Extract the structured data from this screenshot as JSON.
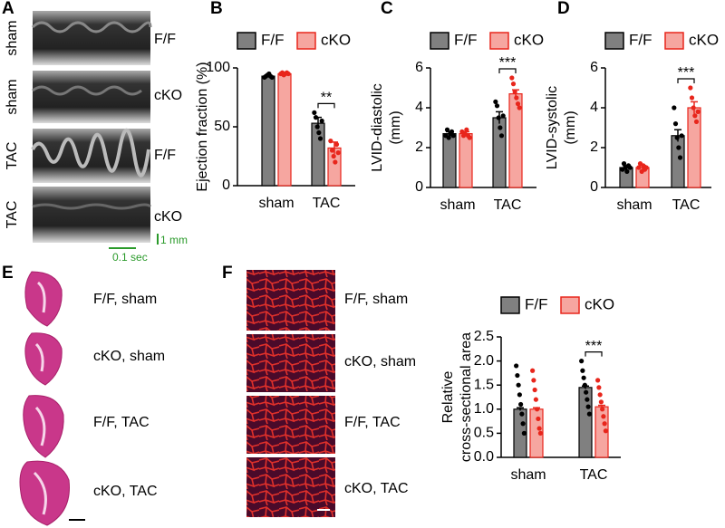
{
  "panel_labels": [
    "A",
    "B",
    "C",
    "D",
    "E",
    "F"
  ],
  "echo": {
    "row_labels": [
      "sham",
      "sham",
      "TAC",
      "TAC"
    ],
    "genotype_labels": [
      "F/F",
      "cKO",
      "F/F",
      "cKO"
    ],
    "scale_y": "1 mm",
    "scale_x": "0.1 sec"
  },
  "histology": {
    "labels": [
      "F/F, sham",
      "cKO, sham",
      "F/F, TAC",
      "cKO, TAC"
    ]
  },
  "staining": {
    "labels": [
      "F/F, sham",
      "cKO, sham",
      "F/F, TAC",
      "cKO, TAC"
    ]
  },
  "chart_data": [
    {
      "type": "bar",
      "ylabel": [
        "Ejection fraction (%)"
      ],
      "categories": [
        "sham",
        "TAC"
      ],
      "ylim": [
        0,
        100
      ],
      "yticks": [
        0,
        50,
        100
      ],
      "annotation": "**",
      "series": [
        {
          "name": "F/F",
          "color": "#808080",
          "edgecolor": "#000000",
          "point_color": "#000000",
          "legend_text_color": "#000000",
          "values": [
            93,
            53
          ],
          "errors": [
            1,
            5
          ],
          "points": [
            [
              92,
              93,
              94,
              95,
              93,
              92
            ],
            [
              62,
              58,
              50,
              45,
              40,
              55
            ]
          ]
        },
        {
          "name": "cKO",
          "color": "#f6a6a0",
          "edgecolor": "#e8261c",
          "point_color": "#e8261c",
          "legend_text_color": "#e8261c",
          "values": [
            95,
            32
          ],
          "errors": [
            1,
            5
          ],
          "points": [
            [
              95,
              96,
              94,
              95,
              96,
              95
            ],
            [
              38,
              30,
              25,
              20,
              35,
              28
            ]
          ]
        }
      ]
    },
    {
      "type": "bar",
      "ylabel": [
        "LVID-diastolic",
        "(mm)"
      ],
      "categories": [
        "sham",
        "TAC"
      ],
      "ylim": [
        0,
        6
      ],
      "yticks": [
        0,
        2,
        4,
        6
      ],
      "annotation": "***",
      "series": [
        {
          "name": "F/F",
          "color": "#808080",
          "edgecolor": "#000000",
          "point_color": "#000000",
          "legend_text_color": "#000000",
          "values": [
            2.7,
            3.5
          ],
          "errors": [
            0.1,
            0.3
          ],
          "points": [
            [
              2.6,
              2.9,
              2.5,
              2.7,
              2.8,
              2.6
            ],
            [
              4.3,
              4.1,
              3.5,
              3.0,
              2.6,
              3.6
            ]
          ]
        },
        {
          "name": "cKO",
          "color": "#f6a6a0",
          "edgecolor": "#e8261c",
          "point_color": "#e8261c",
          "legend_text_color": "#e8261c",
          "values": [
            2.7,
            4.7
          ],
          "errors": [
            0.1,
            0.2
          ],
          "points": [
            [
              2.8,
              2.6,
              2.7,
              2.9,
              2.6,
              2.5
            ],
            [
              5.5,
              5.2,
              4.8,
              4.5,
              4.2,
              4.0
            ]
          ]
        }
      ]
    },
    {
      "type": "bar",
      "ylabel": [
        "LVID-systolic",
        "(mm)"
      ],
      "categories": [
        "sham",
        "TAC"
      ],
      "ylim": [
        0,
        6
      ],
      "yticks": [
        0,
        2,
        4,
        6
      ],
      "annotation": "***",
      "series": [
        {
          "name": "F/F",
          "color": "#808080",
          "edgecolor": "#000000",
          "point_color": "#000000",
          "legend_text_color": "#000000",
          "values": [
            1.0,
            2.6
          ],
          "errors": [
            0.1,
            0.3
          ],
          "points": [
            [
              0.9,
              1.2,
              1.0,
              0.8,
              1.1,
              1.0
            ],
            [
              4.0,
              3.2,
              2.5,
              2.0,
              1.5,
              2.6
            ]
          ]
        },
        {
          "name": "cKO",
          "color": "#f6a6a0",
          "edgecolor": "#e8261c",
          "point_color": "#e8261c",
          "legend_text_color": "#e8261c",
          "values": [
            1.0,
            4.0
          ],
          "errors": [
            0.1,
            0.3
          ],
          "points": [
            [
              1.0,
              1.2,
              0.8,
              1.1,
              0.9,
              1.0
            ],
            [
              5.0,
              4.5,
              4.0,
              3.6,
              3.3,
              3.8
            ]
          ]
        }
      ]
    },
    {
      "type": "bar",
      "ylabel": [
        "Relative",
        "cross-sectional area"
      ],
      "categories": [
        "sham",
        "TAC"
      ],
      "ylim": [
        0,
        2.5
      ],
      "yticks": [
        {
          "value": 0,
          "label": "0.0"
        },
        0.5,
        {
          "value": 1,
          "label": "1.0"
        },
        1.5,
        {
          "value": 2,
          "label": "2.0"
        },
        2.5
      ],
      "annotation": "***",
      "series": [
        {
          "name": "F/F",
          "color": "#808080",
          "edgecolor": "#000000",
          "point_color": "#000000",
          "legend_text_color": "#000000",
          "values": [
            1.0,
            1.45
          ],
          "errors": [
            0.03,
            0.03
          ],
          "points": [
            [
              1.9,
              1.7,
              1.5,
              1.3,
              1.1,
              0.9,
              0.7,
              0.5
            ],
            [
              2.0,
              1.8,
              1.65,
              1.5,
              1.35,
              1.2,
              1.05,
              0.9
            ]
          ]
        },
        {
          "name": "cKO",
          "color": "#f6a6a0",
          "edgecolor": "#e8261c",
          "point_color": "#e8261c",
          "legend_text_color": "#e8261c",
          "values": [
            1.0,
            1.05
          ],
          "errors": [
            0.03,
            0.03
          ],
          "points": [
            [
              1.8,
              1.6,
              1.4,
              1.2,
              1.0,
              0.8,
              0.6,
              0.5
            ],
            [
              1.6,
              1.45,
              1.3,
              1.15,
              1.0,
              0.85,
              0.7,
              0.55
            ]
          ]
        }
      ]
    }
  ]
}
